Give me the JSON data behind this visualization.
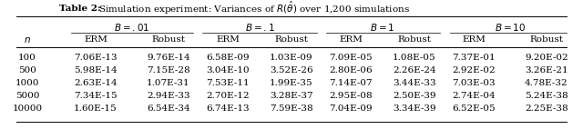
{
  "title_bold": "Table 2:",
  "title_rest": " Simulation experiment: Variances of $R(\\hat{\\theta})$ over 1,200 simulations",
  "b_headers": [
    "$B = .01$",
    "$B = .1$",
    "$B = 1$",
    "$B = 10$"
  ],
  "col_headers": [
    "ERM",
    "Robust",
    "ERM",
    "Robust",
    "ERM",
    "Robust",
    "ERM",
    "Robust"
  ],
  "row_header": "$n$",
  "n_values": [
    "100",
    "500",
    "1000",
    "5000",
    "10000"
  ],
  "data": [
    [
      "7.06E-13",
      "9.76E-14",
      "6.58E-09",
      "1.03E-09",
      "7.09E-05",
      "1.08E-05",
      "7.37E-01",
      "9.20E-02"
    ],
    [
      "5.98E-14",
      "7.15E-28",
      "3.04E-10",
      "3.52E-26",
      "2.80E-06",
      "2.26E-24",
      "2.92E-02",
      "3.26E-21"
    ],
    [
      "2.63E-14",
      "1.07E-31",
      "7.53E-11",
      "1.99E-35",
      "7.14E-07",
      "3.44E-33",
      "7.03E-03",
      "4.78E-32"
    ],
    [
      "7.34E-15",
      "2.94E-33",
      "2.70E-12",
      "3.28E-37",
      "2.95E-08",
      "2.50E-39",
      "2.74E-04",
      "5.24E-38"
    ],
    [
      "1.60E-15",
      "6.54E-34",
      "6.74E-13",
      "7.59E-38",
      "7.04E-09",
      "3.34E-39",
      "6.52E-05",
      "2.25E-38"
    ]
  ],
  "background_color": "#ffffff",
  "text_color": "#000000",
  "font_size": 7.5
}
